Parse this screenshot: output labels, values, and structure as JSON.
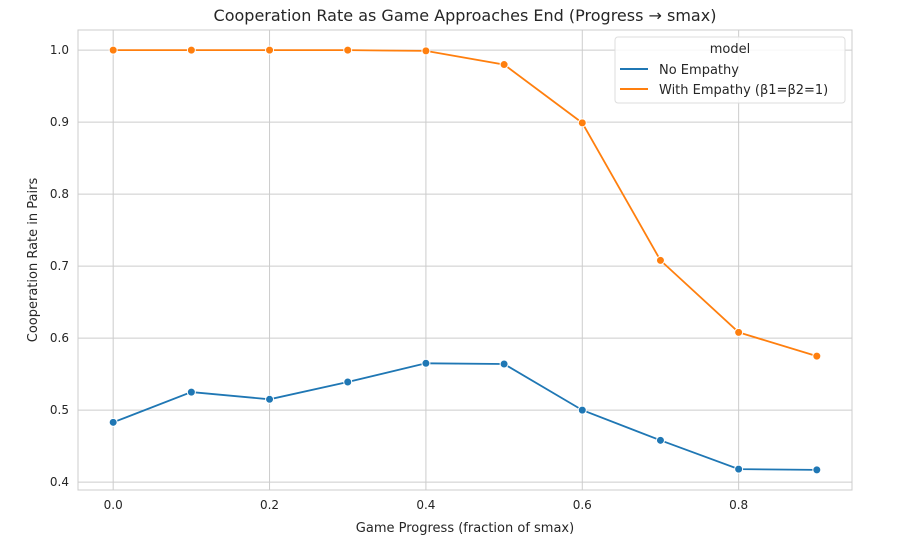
{
  "chart_data": {
    "type": "line",
    "title": "Cooperation Rate as Game Approaches End (Progress → smax)",
    "xlabel": "Game Progress (fraction of smax)",
    "ylabel": "Cooperation Rate in Pairs",
    "x": [
      0.0,
      0.1,
      0.2,
      0.3,
      0.4,
      0.5,
      0.6,
      0.7,
      0.8,
      0.9
    ],
    "xlim": [
      -0.045,
      0.945
    ],
    "ylim": [
      0.389,
      1.028
    ],
    "xticks": [
      0.0,
      0.2,
      0.4,
      0.6,
      0.8
    ],
    "xtick_labels": [
      "0.0",
      "0.2",
      "0.4",
      "0.6",
      "0.8"
    ],
    "yticks": [
      0.4,
      0.5,
      0.6,
      0.7,
      0.8,
      0.9,
      1.0
    ],
    "ytick_labels": [
      "0.4",
      "0.5",
      "0.6",
      "0.7",
      "0.8",
      "0.9",
      "1.0"
    ],
    "grid": true,
    "legend": {
      "title": "model",
      "placement": "top-right"
    },
    "series": [
      {
        "name": "No Empathy",
        "color": "#1f77b4",
        "values": [
          0.483,
          0.525,
          0.515,
          0.539,
          0.565,
          0.564,
          0.5,
          0.458,
          0.418,
          0.417
        ]
      },
      {
        "name": "With Empathy (β1=β2=1)",
        "color": "#ff7f0e",
        "values": [
          1.0,
          1.0,
          1.0,
          1.0,
          0.999,
          0.98,
          0.899,
          0.708,
          0.608,
          0.575
        ]
      }
    ]
  }
}
